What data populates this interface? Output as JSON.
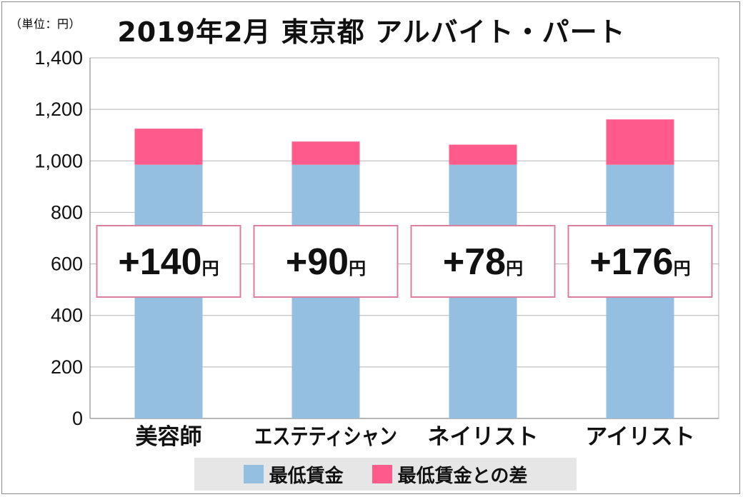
{
  "unit_label": "（単位：円）",
  "title": "2019年2月 東京都 アルバイト・パート",
  "legend": [
    {
      "label": "最低賃金",
      "color": "#95bfe0"
    },
    {
      "label": "最低賃金との差",
      "color": "#ff5a8c"
    }
  ],
  "chart_data": {
    "type": "bar",
    "stacked": true,
    "title": "2019年2月 東京都 アルバイト・パート",
    "categories": [
      "美容師",
      "エステティシャン",
      "ネイリスト",
      "アイリスト"
    ],
    "series": [
      {
        "name": "最低賃金",
        "values": [
          985,
          985,
          985,
          985
        ],
        "color": "#95bfe0"
      },
      {
        "name": "最低賃金との差",
        "values": [
          140,
          90,
          78,
          176
        ],
        "color": "#ff5a8c"
      }
    ],
    "annotations": [
      "+140",
      "+90",
      "+78",
      "+176"
    ],
    "annotation_unit": "円",
    "ylim": [
      0,
      1400
    ],
    "yticks": [
      "0",
      "200",
      "400",
      "600",
      "800",
      "1,000",
      "1,200",
      "1,400"
    ],
    "grid": true,
    "legend_position": "bottom"
  }
}
